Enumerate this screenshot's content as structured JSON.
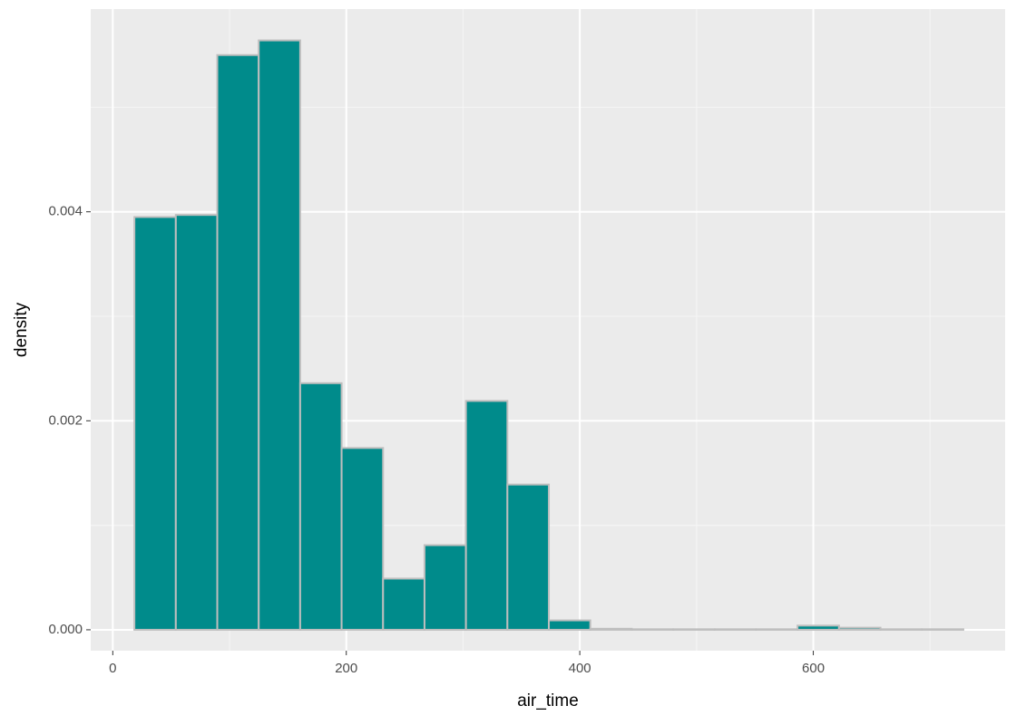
{
  "chart_data": {
    "type": "histogram",
    "x_label": "air_time",
    "y_label": "density",
    "bins": [
      18.5,
      54,
      89.5,
      125,
      160.5,
      196,
      231.5,
      267,
      302.5,
      338,
      373.5,
      409,
      444.5,
      480,
      515.5,
      551,
      586.5,
      622,
      657.5,
      693,
      728.5
    ],
    "values": [
      0.00395,
      0.00397,
      0.0055,
      0.00564,
      0.00236,
      0.00174,
      0.00049,
      0.00081,
      0.00219,
      0.00139,
      9e-05,
      1e-05,
      5e-06,
      5e-06,
      5e-06,
      5e-06,
      4e-05,
      2e-05,
      5e-06,
      5e-06
    ],
    "color": "#008b8b",
    "edge_color": "#bebebe",
    "xlim": [
      -18.9,
      764.3
    ],
    "ylim": [
      -0.0002,
      0.00594
    ],
    "xticks": [
      0,
      200,
      400,
      600
    ],
    "yticks": [
      {
        "value": 0,
        "label": "0.000"
      },
      {
        "value": 0.002,
        "label": "0.002"
      },
      {
        "value": 0.004,
        "label": "0.004"
      }
    ],
    "grid": true
  }
}
